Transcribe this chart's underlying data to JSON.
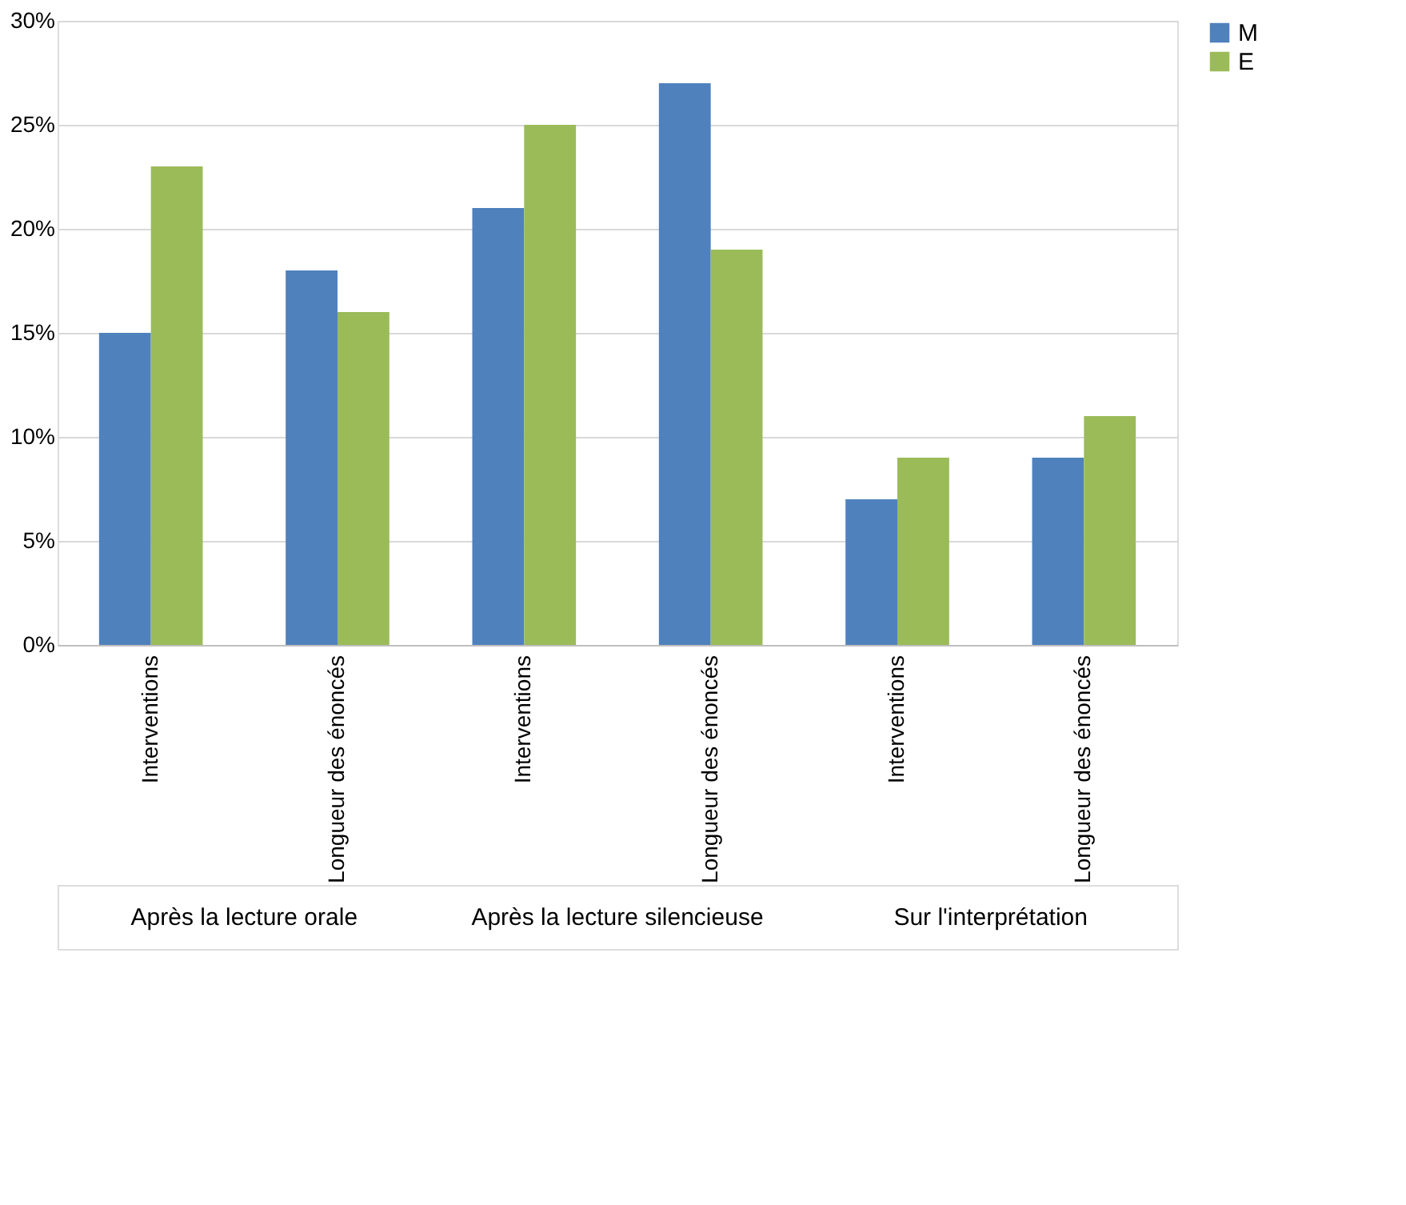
{
  "chart_data": {
    "type": "bar",
    "categories": [
      "Interventions",
      "Longueur des énoncés",
      "Interventions",
      "Longueur des énoncés",
      "Interventions",
      "Longueur des énoncés"
    ],
    "series": [
      {
        "name": "M",
        "color": "#4f81bd",
        "values": [
          15,
          18,
          21,
          27,
          7,
          9
        ]
      },
      {
        "name": "E",
        "color": "#9bbb59",
        "values": [
          23,
          16,
          25,
          19,
          9,
          11
        ]
      }
    ],
    "ylim": [
      0,
      30
    ],
    "yticks": [
      {
        "value": 0,
        "label": "0%"
      },
      {
        "value": 5,
        "label": "5%"
      },
      {
        "value": 10,
        "label": "10%"
      },
      {
        "value": 15,
        "label": "15%"
      },
      {
        "value": 20,
        "label": "20%"
      },
      {
        "value": 25,
        "label": "25%"
      },
      {
        "value": 30,
        "label": "30%"
      }
    ],
    "grid": "y",
    "legend": "right",
    "annotations": [
      "Après la lecture orale",
      "Après la lecture silencieuse",
      "Sur l'interprétation"
    ]
  }
}
